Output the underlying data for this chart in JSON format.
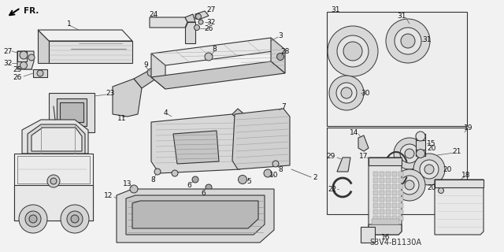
{
  "bg_color": "#f2f2f2",
  "line_color": "#333333",
  "text_color": "#111111",
  "diagram_code": "S3V4-B1130A",
  "figsize": [
    6.4,
    3.2
  ],
  "dpi": 100
}
